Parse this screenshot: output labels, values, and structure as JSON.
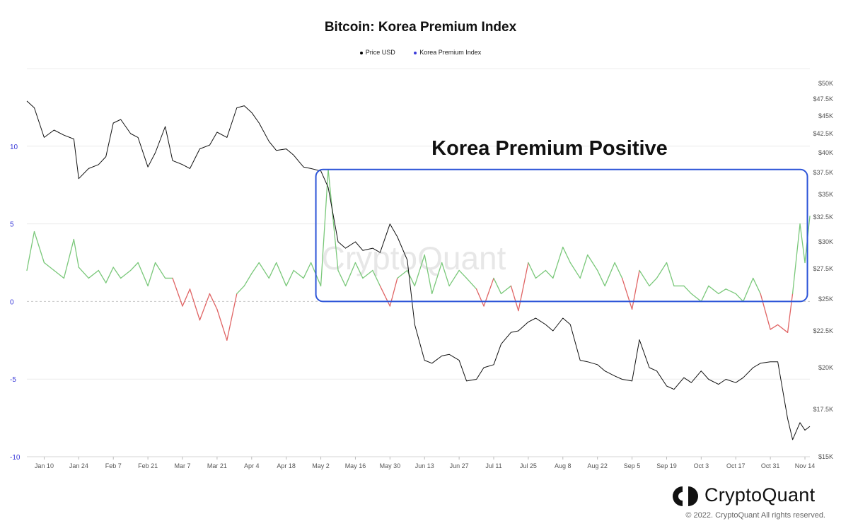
{
  "chart_data": {
    "type": "line",
    "title": "Bitcoin: Korea Premium Index",
    "legend": [
      {
        "name": "Price USD",
        "color": "#000000"
      },
      {
        "name": "Korea Premium Index",
        "color": "#3b3bd9"
      }
    ],
    "legend_position": "top-center",
    "x_ticks": [
      "Jan 10",
      "Jan 24",
      "Feb 7",
      "Feb 21",
      "Mar 7",
      "Mar 21",
      "Apr 4",
      "Apr 18",
      "May 2",
      "May 16",
      "May 30",
      "Jun 13",
      "Jun 27",
      "Jul 11",
      "Jul 25",
      "Aug 8",
      "Aug 22",
      "Sep 5",
      "Sep 19",
      "Oct 3",
      "Oct 17",
      "Oct 31",
      "Nov 14"
    ],
    "y_left": {
      "ticks": [
        10,
        5,
        0,
        -5,
        -10
      ],
      "ylim": [
        -10,
        15
      ],
      "labels": [
        "10",
        "5",
        "0",
        "-5",
        "-10"
      ]
    },
    "y_right": {
      "ticks": [
        15000,
        17500,
        20000,
        22500,
        25000,
        27500,
        30000,
        32500,
        35000,
        37500,
        40000,
        42500,
        45000,
        47500,
        50000
      ],
      "labels": [
        "$15K",
        "$17.5K",
        "$20K",
        "$22.5K",
        "$25K",
        "$27.5K",
        "$30K",
        "$32.5K",
        "$35K",
        "$37.5K",
        "$40K",
        "$42.5K",
        "$45K",
        "$47.5K",
        "$50K"
      ]
    },
    "grid": true,
    "watermark": "CryptoQuant",
    "series": [
      {
        "name": "Price USD",
        "axis": "right",
        "color": "#000000",
        "x": [
          "Jan 3",
          "Jan 6",
          "Jan 10",
          "Jan 14",
          "Jan 18",
          "Jan 22",
          "Jan 24",
          "Jan 28",
          "Feb 1",
          "Feb 4",
          "Feb 7",
          "Feb 10",
          "Feb 14",
          "Feb 17",
          "Feb 21",
          "Feb 24",
          "Feb 28",
          "Mar 3",
          "Mar 7",
          "Mar 10",
          "Mar 14",
          "Mar 18",
          "Mar 21",
          "Mar 25",
          "Mar 29",
          "Apr 1",
          "Apr 4",
          "Apr 7",
          "Apr 11",
          "Apr 14",
          "Apr 18",
          "Apr 21",
          "Apr 25",
          "Apr 28",
          "May 2",
          "May 5",
          "May 9",
          "May 12",
          "May 16",
          "May 19",
          "May 23",
          "May 26",
          "May 30",
          "Jun 2",
          "Jun 6",
          "Jun 9",
          "Jun 13",
          "Jun 16",
          "Jun 20",
          "Jun 23",
          "Jun 27",
          "Jun 30",
          "Jul 4",
          "Jul 7",
          "Jul 11",
          "Jul 14",
          "Jul 18",
          "Jul 21",
          "Jul 25",
          "Jul 28",
          "Aug 1",
          "Aug 4",
          "Aug 8",
          "Aug 11",
          "Aug 15",
          "Aug 18",
          "Aug 22",
          "Aug 25",
          "Aug 29",
          "Sep 1",
          "Sep 5",
          "Sep 8",
          "Sep 12",
          "Sep 15",
          "Sep 19",
          "Sep 22",
          "Sep 26",
          "Sep 29",
          "Oct 3",
          "Oct 6",
          "Oct 10",
          "Oct 13",
          "Oct 17",
          "Oct 20",
          "Oct 24",
          "Oct 27",
          "Oct 31",
          "Nov 3",
          "Nov 7",
          "Nov 9",
          "Nov 12",
          "Nov 14",
          "Nov 16"
        ],
        "values": [
          47200,
          46200,
          42000,
          43000,
          42300,
          41800,
          36800,
          38000,
          38500,
          39500,
          44000,
          44500,
          42500,
          42000,
          38200,
          40000,
          43500,
          39000,
          38500,
          38000,
          40500,
          41000,
          42700,
          42000,
          46200,
          46500,
          45500,
          44000,
          41500,
          40300,
          40500,
          39700,
          38200,
          38000,
          37700,
          35800,
          30000,
          29400,
          30000,
          29200,
          29400,
          29000,
          31800,
          30500,
          28300,
          23000,
          20500,
          20300,
          20800,
          20900,
          20500,
          19200,
          19300,
          20000,
          20200,
          21600,
          22400,
          22500,
          23200,
          23500,
          23000,
          22500,
          23500,
          23000,
          20500,
          20400,
          20200,
          19800,
          19500,
          19300,
          19200,
          21900,
          20000,
          19800,
          18900,
          18700,
          19400,
          19100,
          19800,
          19300,
          19000,
          19300,
          19100,
          19400,
          20000,
          20300,
          20400,
          20400,
          17000,
          15900,
          16800,
          16400,
          16600
        ]
      },
      {
        "name": "Korea Premium Index",
        "axis": "left",
        "color": "#3b3bd9",
        "positive_color": "#7ac87a",
        "negative_color": "#e06464",
        "x": [
          "Jan 3",
          "Jan 6",
          "Jan 10",
          "Jan 14",
          "Jan 18",
          "Jan 22",
          "Jan 24",
          "Jan 28",
          "Feb 1",
          "Feb 4",
          "Feb 7",
          "Feb 10",
          "Feb 14",
          "Feb 17",
          "Feb 21",
          "Feb 24",
          "Feb 28",
          "Mar 3",
          "Mar 7",
          "Mar 10",
          "Mar 14",
          "Mar 18",
          "Mar 21",
          "Mar 25",
          "Mar 29",
          "Apr 1",
          "Apr 4",
          "Apr 7",
          "Apr 11",
          "Apr 14",
          "Apr 18",
          "Apr 21",
          "Apr 25",
          "Apr 28",
          "May 2",
          "May 5",
          "May 9",
          "May 12",
          "May 16",
          "May 19",
          "May 23",
          "May 26",
          "May 30",
          "Jun 2",
          "Jun 6",
          "Jun 9",
          "Jun 13",
          "Jun 16",
          "Jun 20",
          "Jun 23",
          "Jun 27",
          "Jun 30",
          "Jul 4",
          "Jul 7",
          "Jul 11",
          "Jul 14",
          "Jul 18",
          "Jul 21",
          "Jul 25",
          "Jul 28",
          "Aug 1",
          "Aug 4",
          "Aug 8",
          "Aug 11",
          "Aug 15",
          "Aug 18",
          "Aug 22",
          "Aug 25",
          "Aug 29",
          "Sep 1",
          "Sep 5",
          "Sep 8",
          "Sep 12",
          "Sep 15",
          "Sep 19",
          "Sep 22",
          "Sep 26",
          "Sep 29",
          "Oct 3",
          "Oct 6",
          "Oct 10",
          "Oct 13",
          "Oct 17",
          "Oct 20",
          "Oct 24",
          "Oct 27",
          "Oct 31",
          "Nov 3",
          "Nov 7",
          "Nov 9",
          "Nov 12",
          "Nov 14",
          "Nov 16"
        ],
        "values": [
          2.0,
          4.5,
          2.5,
          2.0,
          1.5,
          4.0,
          2.2,
          1.5,
          2.0,
          1.2,
          2.2,
          1.5,
          2.0,
          2.5,
          1.0,
          2.5,
          1.5,
          1.5,
          -0.3,
          0.8,
          -1.2,
          0.5,
          -0.5,
          -2.5,
          0.5,
          1.0,
          1.8,
          2.5,
          1.5,
          2.5,
          1.0,
          2.0,
          1.5,
          2.5,
          1.0,
          8.5,
          2.0,
          1.0,
          2.5,
          1.5,
          2.0,
          1.0,
          -0.3,
          1.5,
          2.0,
          1.0,
          3.0,
          0.5,
          2.5,
          1.0,
          2.0,
          1.5,
          0.8,
          -0.3,
          1.5,
          0.5,
          1.0,
          -0.6,
          2.5,
          1.5,
          2.0,
          1.5,
          3.5,
          2.5,
          1.5,
          3.0,
          2.0,
          1.0,
          2.5,
          1.5,
          -0.5,
          2.0,
          1.0,
          1.5,
          2.5,
          1.0,
          1.0,
          0.5,
          0.0,
          1.0,
          0.5,
          0.8,
          0.5,
          0.0,
          1.5,
          0.5,
          -1.8,
          -1.5,
          -2.0,
          0.5,
          5.0,
          2.5,
          5.5
        ]
      }
    ],
    "annotation": {
      "label": "Korea Premium Positive",
      "x_start": "Apr 30",
      "x_end": "Nov 15",
      "y_range": [
        0,
        8.5
      ],
      "color": "#2d55d8"
    }
  },
  "brand": {
    "name": "CryptoQuant",
    "copyright": "© 2022. CryptoQuant All rights reserved."
  }
}
